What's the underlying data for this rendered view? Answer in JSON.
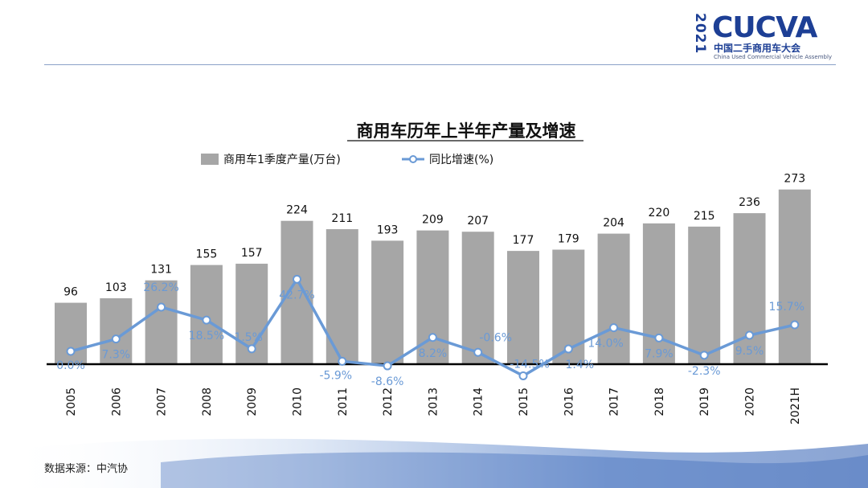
{
  "logo": {
    "year": "2021",
    "name": "CUCVA",
    "name_cn": "中国二手商用车大会",
    "name_en": "China Used Commercial Vehicle Assembly"
  },
  "source": "数据来源：中汽协",
  "colors": {
    "bar": "#a6a6a6",
    "line": "#6a9ad6",
    "brand": "#1d3f95"
  },
  "chart_data": {
    "type": "bar",
    "title": "商用车历年上半年产量及增速",
    "legend_position": "top",
    "categories": [
      "2005",
      "2006",
      "2007",
      "2008",
      "2009",
      "2010",
      "2011",
      "2012",
      "2013",
      "2014",
      "2015",
      "2016",
      "2017",
      "2018",
      "2019",
      "2020",
      "2021H"
    ],
    "series": [
      {
        "name": "商用车1季度产量(万台)",
        "type": "bar",
        "values": [
          96,
          103,
          131,
          155,
          157,
          224,
          211,
          193,
          209,
          207,
          177,
          179,
          204,
          220,
          215,
          236,
          273
        ],
        "labels": [
          "96",
          "103",
          "131",
          "155",
          "157",
          "224",
          "211",
          "193",
          "209",
          "207",
          "177",
          "179",
          "204",
          "220",
          "215",
          "236",
          "273"
        ]
      },
      {
        "name": "同比增速(%)",
        "type": "line",
        "values": [
          0.0,
          7.3,
          26.2,
          18.5,
          1.5,
          42.7,
          -5.9,
          -8.6,
          8.2,
          -0.6,
          -14.5,
          1.4,
          14.0,
          7.9,
          -2.3,
          9.5,
          15.7
        ],
        "labels": [
          "0.0%",
          "7.3%",
          "26.2%",
          "18.5%",
          "1.5%",
          "42.7%",
          "-5.9%",
          "-8.6%",
          "8.2%",
          "-0.6%",
          "-14.5%",
          "1.4%",
          "14.0%",
          "7.9%",
          "-2.3%",
          "9.5%",
          "15.7%"
        ]
      }
    ],
    "grid": false
  }
}
